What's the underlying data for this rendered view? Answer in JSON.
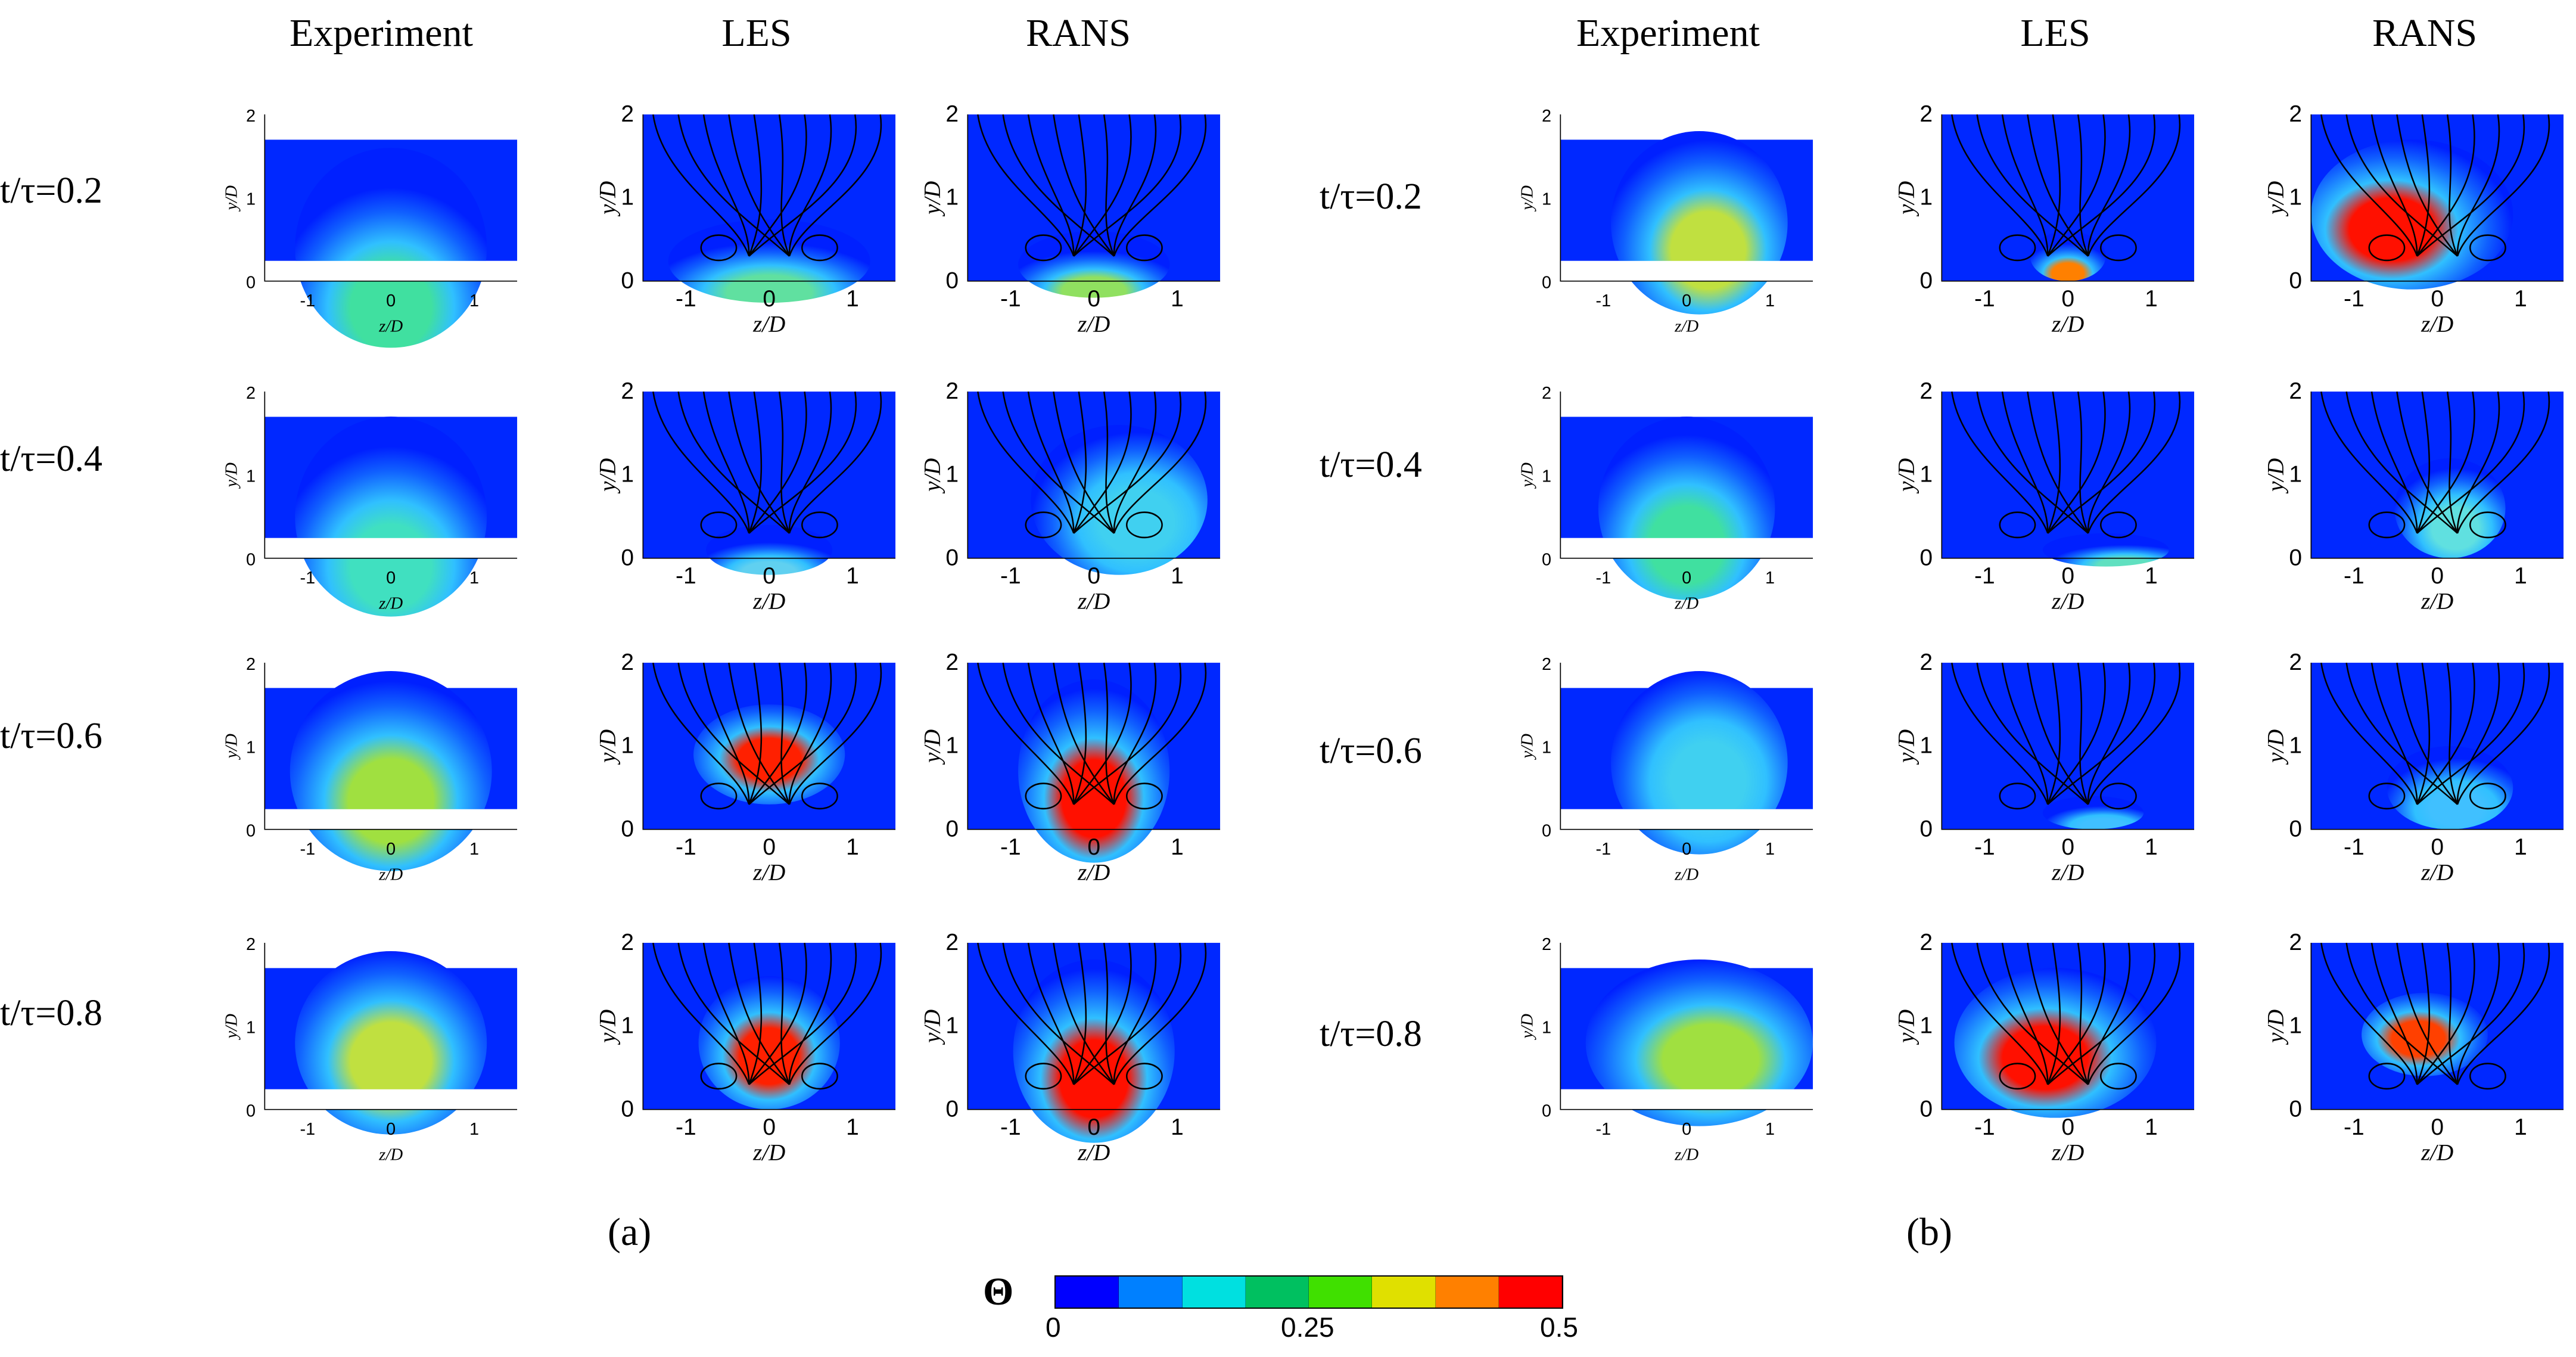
{
  "columns": {
    "a": [
      "Experiment",
      "LES",
      "RANS"
    ],
    "b": [
      "Experiment",
      "LES",
      "RANS"
    ]
  },
  "rows": [
    "t/τ=0.2",
    "t/τ=0.4",
    "t/τ=0.6",
    "t/τ=0.8"
  ],
  "panels": {
    "a": "(a)",
    "b": "(b)"
  },
  "axes": {
    "xlabel": "z/D",
    "ylabel": "y/D",
    "xticks": [
      "-1",
      "0",
      "1"
    ],
    "yticks": [
      "0",
      "1",
      "2"
    ]
  },
  "colorbar": {
    "title": "Θ",
    "min_label": "0",
    "mid_label": "0.25",
    "max_label": "0.5",
    "colors": [
      "#0000ff",
      "#0080ff",
      "#00e0e0",
      "#00c060",
      "#40e000",
      "#e0e000",
      "#ff8000",
      "#ff0000"
    ]
  }
}
